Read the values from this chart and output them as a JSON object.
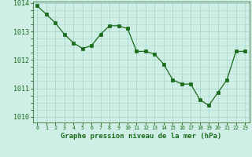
{
  "x": [
    0,
    1,
    2,
    3,
    4,
    5,
    6,
    7,
    8,
    9,
    10,
    11,
    12,
    13,
    14,
    15,
    16,
    17,
    18,
    19,
    20,
    21,
    22,
    23
  ],
  "y": [
    1013.9,
    1013.6,
    1013.3,
    1012.9,
    1012.6,
    1012.4,
    1012.5,
    1012.9,
    1013.2,
    1013.2,
    1013.1,
    1012.3,
    1012.3,
    1012.2,
    1011.85,
    1011.3,
    1011.15,
    1011.15,
    1010.6,
    1010.4,
    1010.85,
    1011.3,
    1012.3,
    1012.3
  ],
  "line_color": "#1a6b1a",
  "marker_color": "#1a6b1a",
  "bg_color": "#ceeee6",
  "grid_color": "#a8d8cc",
  "xlabel": "Graphe pression niveau de la mer (hPa)",
  "xlabel_color": "#1a6b1a",
  "tick_color": "#1a6b1a",
  "axis_color": "#5a8a5a",
  "ylim": [
    1009.8,
    1014.05
  ],
  "xlim": [
    -0.5,
    23.5
  ],
  "yticks": [
    1010,
    1011,
    1012,
    1013,
    1014
  ],
  "xticks": [
    0,
    1,
    2,
    3,
    4,
    5,
    6,
    7,
    8,
    9,
    10,
    11,
    12,
    13,
    14,
    15,
    16,
    17,
    18,
    19,
    20,
    21,
    22,
    23
  ],
  "ytick_fontsize": 6.0,
  "xtick_fontsize": 4.8,
  "xlabel_fontsize": 6.5
}
